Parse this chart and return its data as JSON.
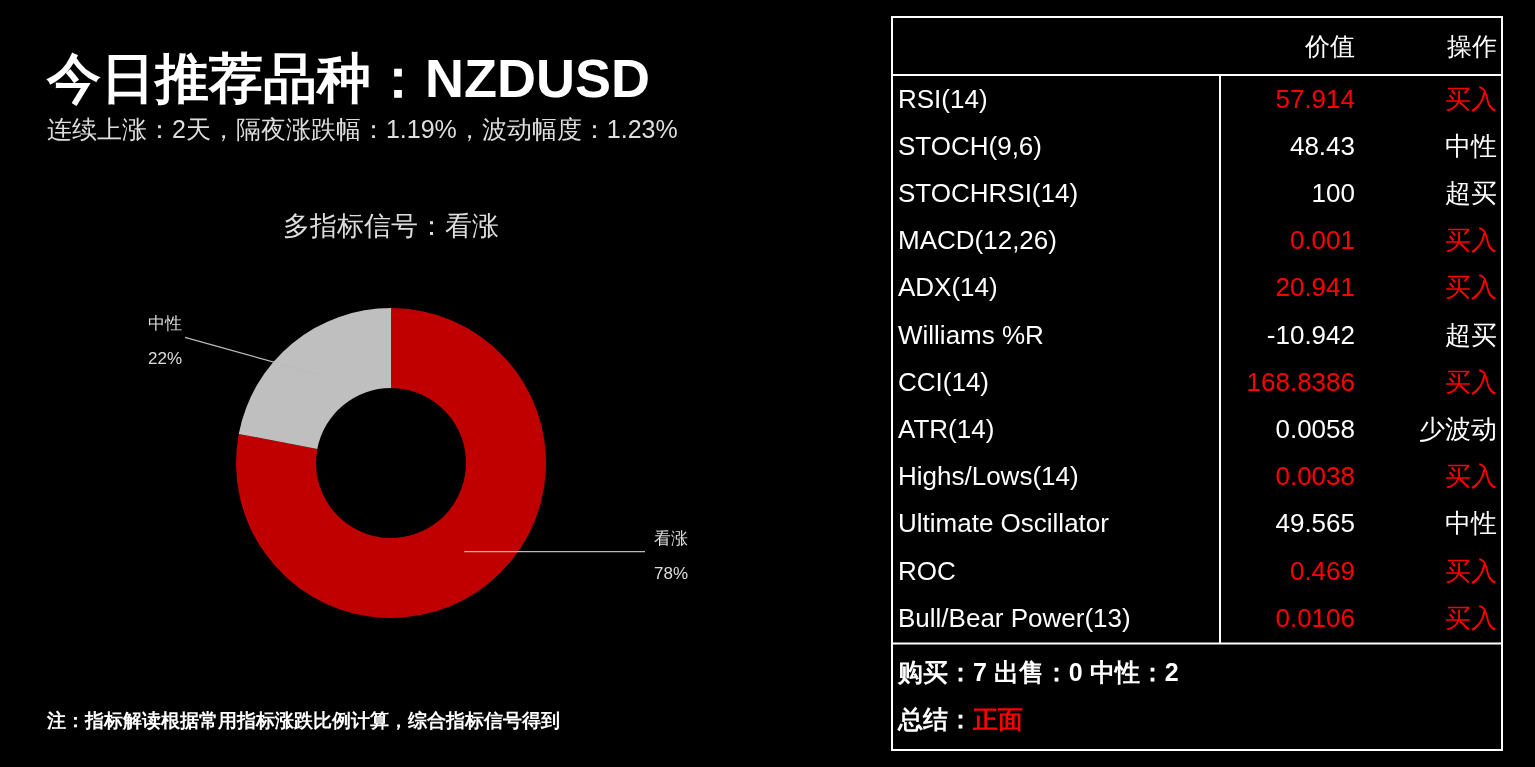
{
  "chart_data": [
    {
      "type": "donut",
      "title": "今日推荐品种：NZDUSD",
      "subtitle": "连续上涨：2天，隔夜涨跌幅：1.19%，波动幅度：1.23%",
      "annotations": [
        "多指标信号：看涨",
        "注：指标解读根据常用指标涨跌比例计算，综合指标信号得到"
      ],
      "categories": [
        "看涨",
        "中性"
      ],
      "values": [
        78,
        22
      ],
      "colors": [
        "#c00000",
        "#bfbfbf"
      ],
      "value_labels": [
        "78%",
        "22%"
      ]
    },
    {
      "type": "other",
      "categories": [
        "价值",
        "操作"
      ],
      "y_categories": [
        "RSI(14)",
        "STOCH(9,6)",
        "STOCHRSI(14)",
        "MACD(12,26)",
        "ADX(14)",
        "Williams %R",
        "CCI(14)",
        "ATR(14)",
        "Highs/Lows(14)",
        "Ultimate Oscillator",
        "ROC",
        "Bull/Bear Power(13)"
      ],
      "cell_labels": [
        [
          "57.914",
          "买入"
        ],
        [
          "48.43",
          "中性"
        ],
        [
          "100",
          "超买"
        ],
        [
          "0.001",
          "买入"
        ],
        [
          "20.941",
          "买入"
        ],
        [
          "-10.942",
          "超买"
        ],
        [
          "168.8386",
          "买入"
        ],
        [
          "0.0058",
          "少波动"
        ],
        [
          "0.0038",
          "买入"
        ],
        [
          "49.565",
          "中性"
        ],
        [
          "0.469",
          "买入"
        ],
        [
          "0.0106",
          "买入"
        ]
      ],
      "colors": [
        "#ff0000",
        "#ffffff",
        "#ffffff",
        "#ff0000",
        "#ff0000",
        "#ffffff",
        "#ff0000",
        "#ffffff",
        "#ff0000",
        "#ffffff",
        "#ff0000",
        "#ff0000"
      ],
      "annotations": [
        "购买：7 出售：0 中性：2",
        "总结：",
        "正面"
      ],
      "color": "#ff0000"
    }
  ]
}
